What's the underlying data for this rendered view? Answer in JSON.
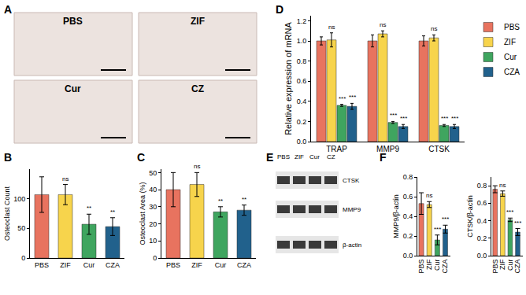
{
  "chart_data": [
    {
      "panel": "B",
      "type": "bar",
      "categories": [
        "PBS",
        "ZIF",
        "Cur",
        "CZA"
      ],
      "values": [
        107,
        107,
        57,
        53
      ],
      "errors": [
        30,
        17,
        17,
        15
      ],
      "significance": [
        null,
        "ns",
        "**",
        "**"
      ],
      "colors": [
        "#e8735f",
        "#f7d44c",
        "#3fa55f",
        "#21618c"
      ],
      "y_label": "Osteoclast Count",
      "ylim": [
        0,
        150
      ],
      "yticks": [
        0,
        50,
        100
      ],
      "grid": false
    },
    {
      "panel": "C",
      "type": "bar",
      "categories": [
        "PBS",
        "ZIF",
        "Cur",
        "CZA"
      ],
      "values": [
        40,
        43,
        27,
        28
      ],
      "errors": [
        10,
        7,
        3,
        3
      ],
      "significance": [
        null,
        "ns",
        "**",
        "**"
      ],
      "colors": [
        "#e8735f",
        "#f7d44c",
        "#3fa55f",
        "#21618c"
      ],
      "y_label": "Osteoclast Area (%)",
      "ylim": [
        0,
        52
      ],
      "yticks": [
        0,
        10,
        20,
        30,
        40,
        50
      ],
      "grid": false
    },
    {
      "panel": "D",
      "type": "bar",
      "categories": [
        "TRAP",
        "MMP9",
        "CTSK"
      ],
      "series": [
        {
          "name": "PBS",
          "color": "#e8735f",
          "values": [
            1.0,
            1.0,
            1.0
          ],
          "errors": [
            0.04,
            0.06,
            0.05
          ],
          "significance": [
            null,
            null,
            null
          ]
        },
        {
          "name": "ZIF",
          "color": "#f7d44c",
          "values": [
            1.01,
            1.07,
            1.03
          ],
          "errors": [
            0.07,
            0.03,
            0.03
          ],
          "significance": [
            "ns",
            "ns",
            "ns"
          ]
        },
        {
          "name": "Cur",
          "color": "#3fa55f",
          "values": [
            0.36,
            0.19,
            0.16
          ],
          "errors": [
            0.01,
            0.01,
            0.01
          ],
          "significance": [
            "***",
            "***",
            "***"
          ]
        },
        {
          "name": "CZA",
          "color": "#21618c",
          "values": [
            0.35,
            0.15,
            0.15
          ],
          "errors": [
            0.03,
            0.02,
            0.02
          ],
          "significance": [
            "***",
            "***",
            "***"
          ]
        }
      ],
      "y_label": "Relative expression of mRNA",
      "ylim": [
        0,
        1.25
      ],
      "yticks": [
        {
          "value": 0,
          "label": "0.0"
        },
        0.2,
        0.4,
        0.6,
        0.8,
        {
          "value": 1,
          "label": "1.0"
        },
        1.2
      ],
      "legend": "right",
      "grid": false
    },
    {
      "panel": "F",
      "type": "bar",
      "categories": [
        "PBS",
        "ZIF",
        "Cur",
        "CZA"
      ],
      "values": [
        0.53,
        0.52,
        0.16,
        0.27
      ],
      "errors": [
        0.11,
        0.03,
        0.05,
        0.04
      ],
      "significance": [
        null,
        "ns",
        "***",
        "***"
      ],
      "colors": [
        "#e8735f",
        "#f7d44c",
        "#3fa55f",
        "#21618c"
      ],
      "y_label": "MMP9/β-actin",
      "ylim": [
        0,
        0.8
      ],
      "yticks": [
        {
          "value": 0,
          "label": "0.0"
        },
        0.2,
        0.4,
        0.6,
        0.8
      ],
      "grid": false
    },
    {
      "type": "bar",
      "categories": [
        "PBS",
        "ZIF",
        "Cur",
        "CZA"
      ],
      "values": [
        0.76,
        0.71,
        0.41,
        0.27
      ],
      "errors": [
        0.04,
        0.03,
        0.02,
        0.04
      ],
      "significance": [
        null,
        "ns",
        "***",
        "***"
      ],
      "colors": [
        "#e8735f",
        "#f7d44c",
        "#3fa55f",
        "#21618c"
      ],
      "y_label": "CTSK/β-actin",
      "ylim": [
        0,
        0.9
      ],
      "yticks": [
        {
          "value": 0,
          "label": "0.0"
        },
        0.2,
        0.4,
        0.6,
        0.8
      ],
      "grid": false
    }
  ],
  "images": {
    "panel": "A",
    "labels": [
      "PBS",
      "ZIF",
      "Cur",
      "CZ"
    ]
  },
  "blot": {
    "panel": "E",
    "lanes": [
      "PBS",
      "ZIF",
      "Cur",
      "CZ"
    ],
    "bands": [
      "CTSK",
      "MMP9",
      "β-actin"
    ]
  }
}
